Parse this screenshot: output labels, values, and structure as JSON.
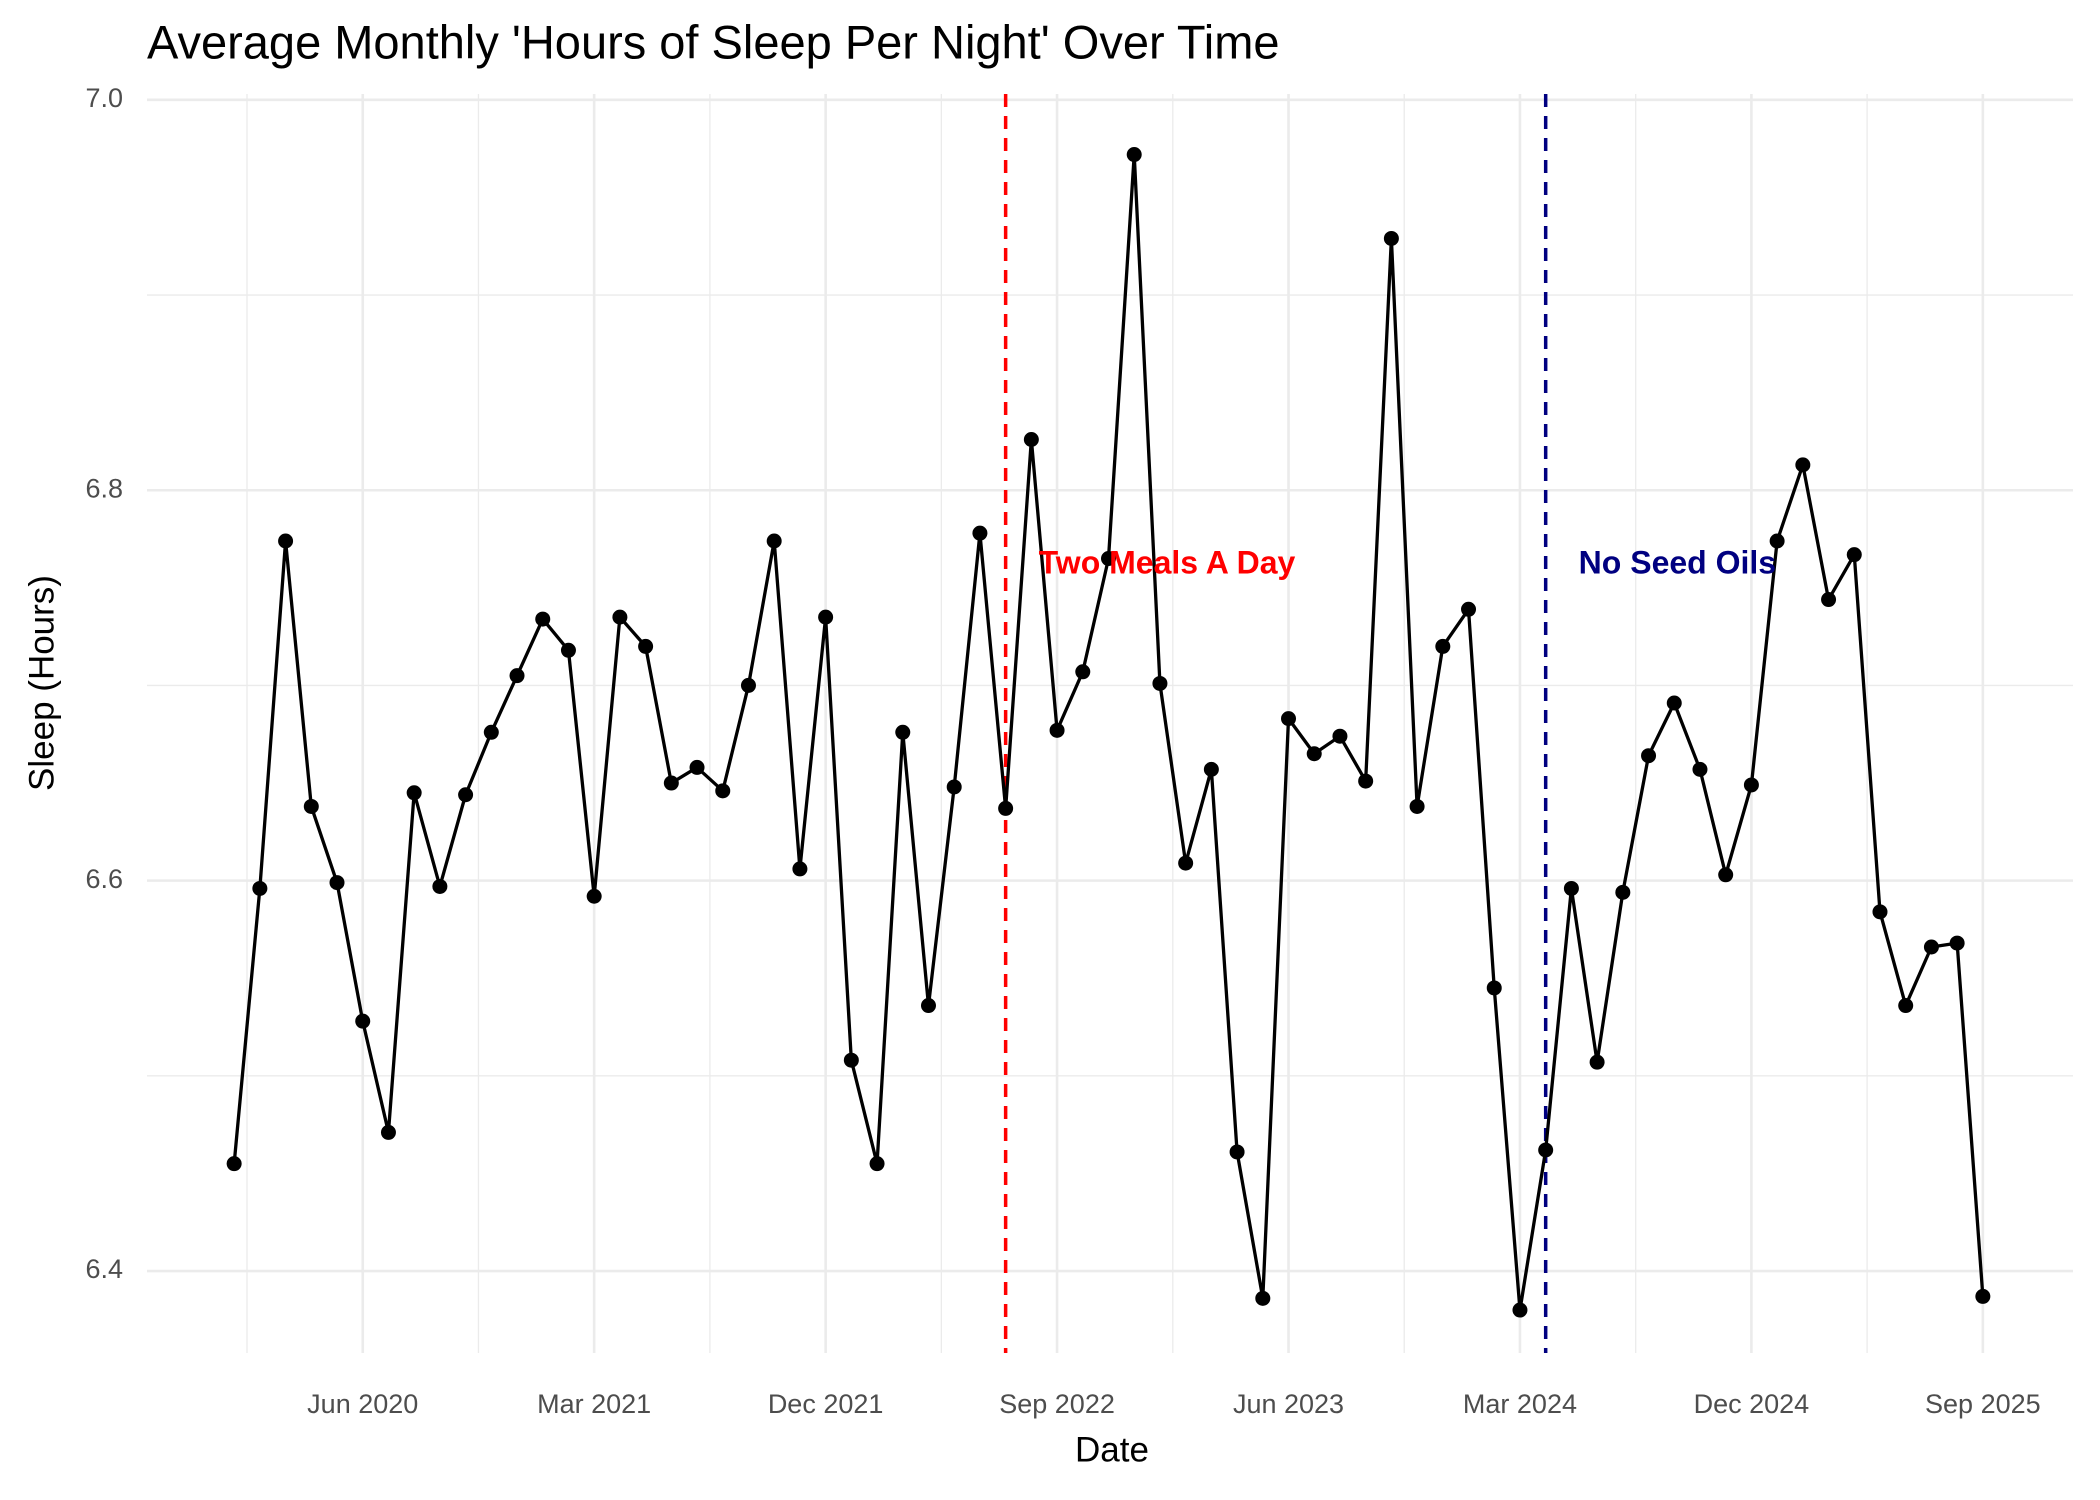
{
  "chart_data": {
    "type": "line",
    "title": "Average Monthly 'Hours of Sleep Per Night' Over Time",
    "x_label": "Date",
    "y_label": "Sleep (Hours)",
    "color": "#000000",
    "grid": true,
    "x": [
      "2020-01",
      "2020-02",
      "2020-03",
      "2020-04",
      "2020-05",
      "2020-06",
      "2020-07",
      "2020-08",
      "2020-09",
      "2020-10",
      "2020-11",
      "2020-12",
      "2021-01",
      "2021-02",
      "2021-03",
      "2021-04",
      "2021-05",
      "2021-06",
      "2021-07",
      "2021-08",
      "2021-09",
      "2021-10",
      "2021-11",
      "2021-12",
      "2022-01",
      "2022-02",
      "2022-03",
      "2022-04",
      "2022-05",
      "2022-06",
      "2022-07",
      "2022-08",
      "2022-09",
      "2022-10",
      "2022-11",
      "2022-12",
      "2023-01",
      "2023-02",
      "2023-03",
      "2023-04",
      "2023-05",
      "2023-06",
      "2023-07",
      "2023-08",
      "2023-09",
      "2023-10",
      "2023-11",
      "2023-12",
      "2024-01",
      "2024-02",
      "2024-03",
      "2024-04",
      "2024-05",
      "2024-06",
      "2024-07",
      "2024-08",
      "2024-09",
      "2024-10",
      "2024-11",
      "2024-12",
      "2025-01",
      "2025-02",
      "2025-03",
      "2025-04",
      "2025-05",
      "2025-06",
      "2025-07",
      "2025-08",
      "2025-09"
    ],
    "values": [
      6.455,
      6.596,
      6.774,
      6.638,
      6.599,
      6.528,
      6.471,
      6.645,
      6.597,
      6.644,
      6.676,
      6.705,
      6.734,
      6.718,
      6.592,
      6.735,
      6.72,
      6.65,
      6.658,
      6.646,
      6.7,
      6.774,
      6.606,
      6.735,
      6.508,
      6.455,
      6.676,
      6.536,
      6.648,
      6.778,
      6.637,
      6.826,
      6.677,
      6.707,
      6.765,
      6.972,
      6.701,
      6.609,
      6.657,
      6.461,
      6.386,
      6.683,
      6.665,
      6.674,
      6.651,
      6.929,
      6.638,
      6.72,
      6.739,
      6.545,
      6.38,
      6.462,
      6.596,
      6.507,
      6.594,
      6.664,
      6.691,
      6.657,
      6.603,
      6.649,
      6.774,
      6.813,
      6.744,
      6.767,
      6.584,
      6.536,
      6.566,
      6.568,
      6.387
    ],
    "xlim": [
      "2019-10",
      "2025-12"
    ],
    "xticks": [
      {
        "value": "2020-06",
        "label": "Jun 2020"
      },
      {
        "value": "2021-03",
        "label": "Mar 2021"
      },
      {
        "value": "2021-12",
        "label": "Dec 2021"
      },
      {
        "value": "2022-09",
        "label": "Sep 2022"
      },
      {
        "value": "2023-06",
        "label": "Jun 2023"
      },
      {
        "value": "2024-03",
        "label": "Mar 2024"
      },
      {
        "value": "2024-12",
        "label": "Dec 2024"
      },
      {
        "value": "2025-09",
        "label": "Sep 2025"
      }
    ],
    "ylim": [
      6.358,
      7.003
    ],
    "yticks": [
      {
        "value": 6.4,
        "label": "6.4"
      },
      {
        "value": 6.6,
        "label": "6.6"
      },
      {
        "value": 6.8,
        "label": "6.8"
      },
      {
        "value": 7.0,
        "label": "7.0"
      }
    ],
    "annotations": [
      {
        "x": "2022-07",
        "label": "Two Meals A Day",
        "color": "#ff0000"
      },
      {
        "x": "2024-04",
        "label": "No Seed Oils",
        "color": "#000080"
      }
    ]
  }
}
